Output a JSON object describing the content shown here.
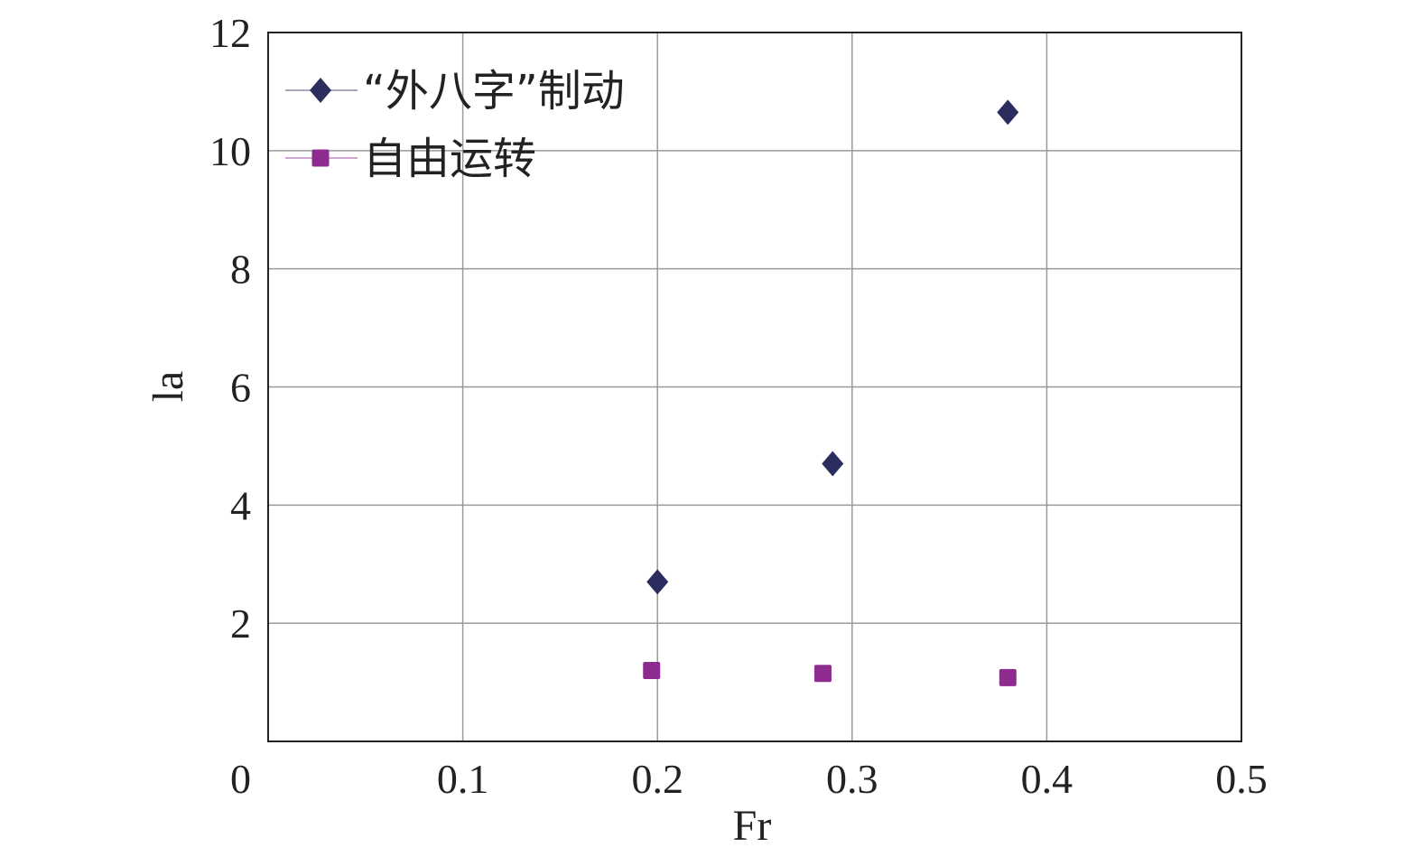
{
  "chart_data": {
    "type": "scatter",
    "title": "",
    "xlabel": "Fr",
    "ylabel": "la",
    "xlim": [
      0,
      0.5
    ],
    "ylim": [
      0,
      12
    ],
    "xticks": [
      0.1,
      0.2,
      0.3,
      0.4,
      0.5
    ],
    "xtick_labels": [
      "0.1",
      "0.2",
      "0.3",
      "0.4",
      "0.5"
    ],
    "yticks": [
      0,
      2,
      4,
      6,
      8,
      10,
      12
    ],
    "ytick_labels": [
      "0",
      "2",
      "4",
      "6",
      "8",
      "10",
      "12"
    ],
    "grid": true,
    "legend_position": "top-left",
    "series": [
      {
        "name": "“外八字”制动",
        "marker": "diamond",
        "color": "#2a2d5e",
        "x": [
          0.2,
          0.29,
          0.38
        ],
        "y": [
          2.7,
          4.7,
          10.65
        ]
      },
      {
        "name": "自由运转",
        "marker": "square",
        "color": "#8e2b8e",
        "x": [
          0.197,
          0.285,
          0.38
        ],
        "y": [
          1.2,
          1.15,
          1.08
        ]
      }
    ]
  }
}
